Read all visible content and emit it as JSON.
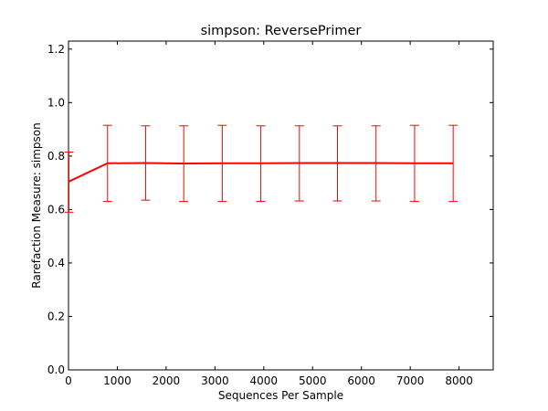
{
  "chart_data": {
    "type": "line",
    "title": "simpson: ReversePrimer",
    "xlabel": "Sequences Per Sample",
    "ylabel": "Rarefaction Measure: simpson",
    "xlim": [
      0,
      8700
    ],
    "ylim": [
      0.0,
      1.23
    ],
    "xticks": [
      0,
      1000,
      2000,
      3000,
      4000,
      5000,
      6000,
      7000,
      8000
    ],
    "xtick_labels": [
      "0",
      "1000",
      "2000",
      "3000",
      "4000",
      "5000",
      "6000",
      "7000",
      "8000"
    ],
    "yticks": [
      0.0,
      0.2,
      0.4,
      0.6,
      0.8,
      1.0,
      1.2
    ],
    "ytick_labels": [
      "0.0",
      "0.2",
      "0.4",
      "0.6",
      "0.8",
      "1.0",
      "1.2"
    ],
    "grid": false,
    "line_color": "#ff0000",
    "series": [
      {
        "x": [
          10,
          800,
          1580,
          2360,
          3150,
          3940,
          4730,
          5510,
          6300,
          7090,
          7880
        ],
        "y": [
          0.705,
          0.773,
          0.774,
          0.772,
          0.773,
          0.773,
          0.774,
          0.774,
          0.774,
          0.773,
          0.773
        ],
        "err_low": [
          0.59,
          0.63,
          0.635,
          0.63,
          0.63,
          0.63,
          0.632,
          0.632,
          0.632,
          0.63,
          0.63
        ],
        "err_high": [
          0.815,
          0.915,
          0.913,
          0.913,
          0.915,
          0.913,
          0.913,
          0.913,
          0.913,
          0.915,
          0.915
        ]
      }
    ]
  }
}
